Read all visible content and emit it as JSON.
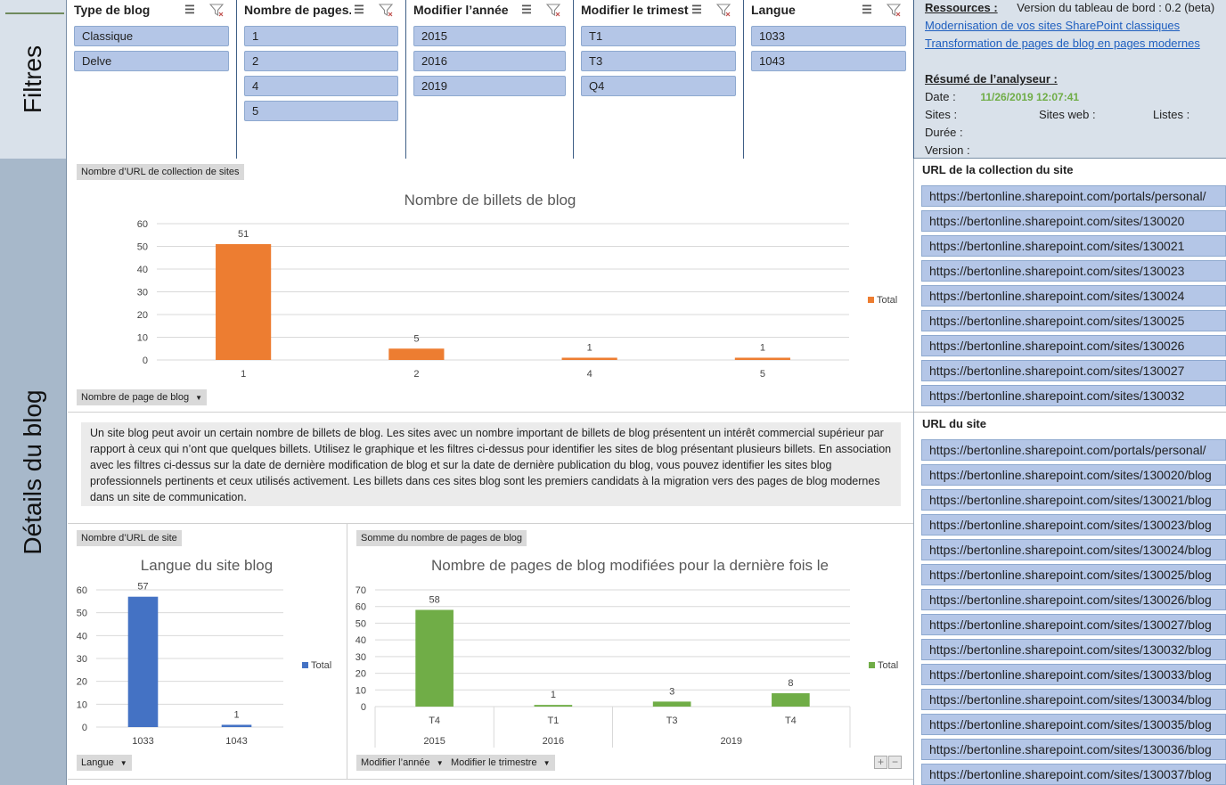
{
  "sidebar": {
    "filters_label": "Filtres",
    "details_label": "Détails du blog"
  },
  "slicers": [
    {
      "title": "Type de blog",
      "items": [
        "Classique",
        "Delve"
      ]
    },
    {
      "title": "Nombre de pages...",
      "items": [
        "1",
        "2",
        "4",
        "5"
      ]
    },
    {
      "title": "Modifier l’année",
      "items": [
        "2015",
        "2016",
        "2019"
      ]
    },
    {
      "title": "Modifier le trimestre",
      "items": [
        "T1",
        "T3",
        "Q4"
      ]
    },
    {
      "title": "Langue",
      "items": [
        "1033",
        "1043"
      ]
    }
  ],
  "resources": {
    "label": "Ressources :",
    "version": "Version du tableau de bord : 0.2 (beta)",
    "links": [
      "Modernisation de vos sites SharePoint classiques",
      "Transformation de pages de blog en pages modernes"
    ],
    "summary_label": "Résumé de l’analyseur :",
    "date_label": "Date :",
    "date_value": "11/26/2019 12:07:41",
    "sites_label": "Sites :",
    "webs_label": "Sites web :",
    "lists_label": "Listes :",
    "duration_label": "Durée :",
    "version_label": "Version :"
  },
  "site_collection_urls": {
    "title": "URL de la collection du site",
    "items": [
      "https://bertonline.sharepoint.com/portals/personal/",
      "https://bertonline.sharepoint.com/sites/130020",
      "https://bertonline.sharepoint.com/sites/130021",
      "https://bertonline.sharepoint.com/sites/130023",
      "https://bertonline.sharepoint.com/sites/130024",
      "https://bertonline.sharepoint.com/sites/130025",
      "https://bertonline.sharepoint.com/sites/130026",
      "https://bertonline.sharepoint.com/sites/130027",
      "https://bertonline.sharepoint.com/sites/130032"
    ]
  },
  "site_urls": {
    "title": "URL du site",
    "items": [
      "https://bertonline.sharepoint.com/portals/personal/",
      "https://bertonline.sharepoint.com/sites/130020/blog",
      "https://bertonline.sharepoint.com/sites/130021/blog",
      "https://bertonline.sharepoint.com/sites/130023/blog",
      "https://bertonline.sharepoint.com/sites/130024/blog",
      "https://bertonline.sharepoint.com/sites/130025/blog",
      "https://bertonline.sharepoint.com/sites/130026/blog",
      "https://bertonline.sharepoint.com/sites/130027/blog",
      "https://bertonline.sharepoint.com/sites/130032/blog",
      "https://bertonline.sharepoint.com/sites/130033/blog",
      "https://bertonline.sharepoint.com/sites/130034/blog",
      "https://bertonline.sharepoint.com/sites/130035/blog",
      "https://bertonline.sharepoint.com/sites/130036/blog",
      "https://bertonline.sharepoint.com/sites/130037/blog"
    ]
  },
  "chart1_pill": "Nombre d’URL de collection de sites",
  "chart1_filter": "Nombre de page de blog",
  "description": "Un site blog peut avoir un certain nombre de billets de blog. Les sites avec un nombre important de billets de blog présentent un intérêt commercial supérieur par rapport à ceux qui n’ont que quelques billets. Utilisez le graphique et les filtres ci-dessus pour identifier les sites de blog présentant plusieurs billets. En association avec les filtres ci-dessus sur la date de dernière modification de blog et sur la date de dernière publication du blog, vous pouvez identifier les sites blog professionnels pertinents et ceux utilisés activement. Les billets dans ces sites blog sont les premiers candidats à la migration vers des pages de blog modernes dans un site de communication.",
  "chart2_pill": "Nombre d’URL de site",
  "chart2_filter": "Langue",
  "chart3_pill": "Somme du nombre de pages de blog",
  "chart3_filter1": "Modifier l’année",
  "chart3_filter2": "Modifier le trimestre",
  "chart_data": [
    {
      "type": "bar",
      "title": "Nombre de billets de blog",
      "categories": [
        "1",
        "2",
        "4",
        "5"
      ],
      "series": [
        {
          "name": "Total",
          "values": [
            51,
            5,
            1,
            1
          ]
        }
      ],
      "ylim": [
        0,
        60
      ],
      "yticks": [
        0,
        10,
        20,
        30,
        40,
        50,
        60
      ],
      "color": "#ed7d31",
      "legend": "right"
    },
    {
      "type": "bar",
      "title": "Langue du site blog",
      "categories": [
        "1033",
        "1043"
      ],
      "series": [
        {
          "name": "Total",
          "values": [
            57,
            1
          ]
        }
      ],
      "ylim": [
        0,
        60
      ],
      "yticks": [
        0,
        10,
        20,
        30,
        40,
        50,
        60
      ],
      "color": "#4472c4",
      "legend": "right"
    },
    {
      "type": "bar",
      "title": "Nombre de pages de blog modifiées pour la dernière fois le",
      "categories": [
        "T4",
        "T1",
        "T3",
        "T4"
      ],
      "groups": [
        {
          "label": "2015",
          "span": 1
        },
        {
          "label": "2016",
          "span": 1
        },
        {
          "label": "2019",
          "span": 2
        }
      ],
      "series": [
        {
          "name": "Total",
          "values": [
            58,
            1,
            3,
            8
          ]
        }
      ],
      "ylim": [
        0,
        70
      ],
      "yticks": [
        0,
        10,
        20,
        30,
        40,
        50,
        60,
        70
      ],
      "color": "#70ad47",
      "legend": "right"
    }
  ],
  "zoom_controls": {
    "plus": "+",
    "minus": "−"
  }
}
